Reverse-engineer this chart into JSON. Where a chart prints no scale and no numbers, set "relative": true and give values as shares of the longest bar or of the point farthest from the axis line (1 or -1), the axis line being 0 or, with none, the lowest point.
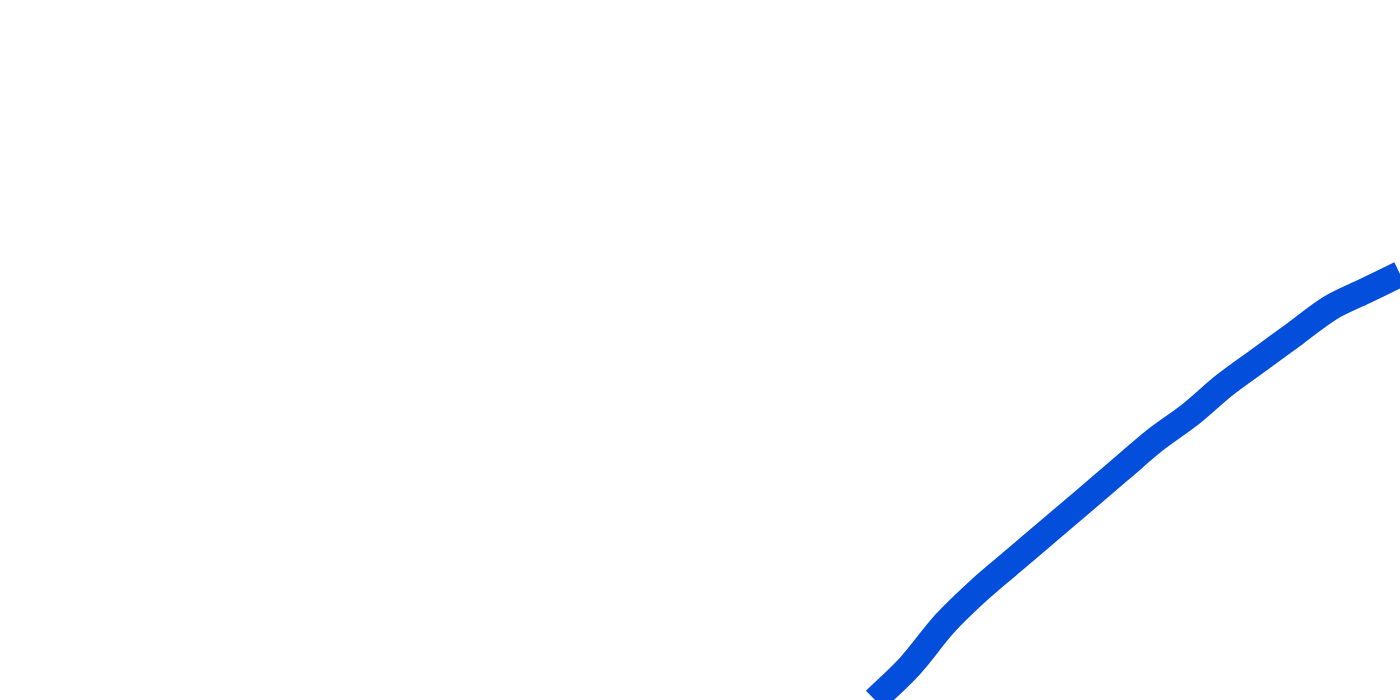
{
  "chart_data": {
    "type": "line",
    "relative": true,
    "color": "#034fdc",
    "categories": [
      null,
      null,
      null,
      null,
      null,
      null,
      null,
      null,
      null,
      null,
      null,
      null,
      null,
      null,
      null,
      null,
      null,
      null,
      null,
      null,
      null,
      null,
      null,
      null,
      null,
      null,
      null,
      null,
      null,
      null,
      null,
      null,
      null,
      null,
      null,
      null,
      null,
      null,
      null,
      null,
      null
    ],
    "values": [
      null,
      null,
      null,
      null,
      null,
      null,
      null,
      null,
      null,
      null,
      null,
      null,
      null,
      null,
      null,
      null,
      null,
      null,
      null,
      null,
      null,
      null,
      null,
      null,
      null,
      0,
      0.08,
      0.18,
      0.26,
      0.33,
      0.4,
      0.47,
      0.54,
      0.61,
      0.67,
      0.74,
      0.8,
      0.86,
      0.92,
      0.96,
      1
    ]
  }
}
